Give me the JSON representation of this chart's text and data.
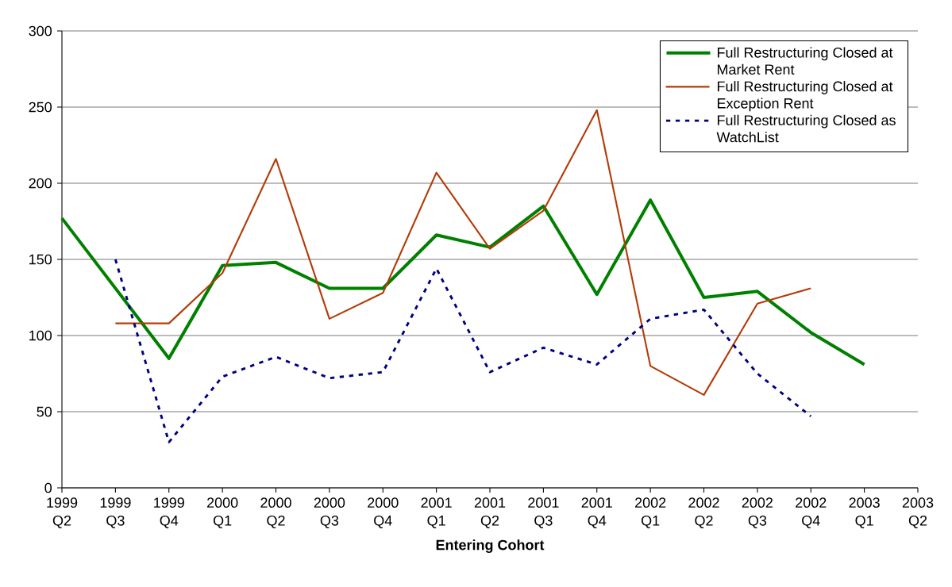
{
  "chart_data": {
    "type": "line",
    "xlabel": "Entering Cohort",
    "categories": [
      "1999 Q2",
      "1999 Q3",
      "1999 Q4",
      "2000 Q1",
      "2000 Q2",
      "2000 Q3",
      "2000 Q4",
      "2001 Q1",
      "2001 Q2",
      "2001 Q3",
      "2001 Q4",
      "2002 Q1",
      "2002 Q2",
      "2002 Q3",
      "2002 Q4",
      "2003 Q1",
      "2003 Q2"
    ],
    "series": [
      {
        "name": "Full Restructuring Closed at Market Rent",
        "color": "#008000",
        "line_style": "solid",
        "values": [
          177,
          131,
          85,
          146,
          148,
          131,
          131,
          166,
          158,
          185,
          127,
          189,
          125,
          129,
          102,
          81,
          null
        ]
      },
      {
        "name": "Full Restructuring Closed at Exception Rent",
        "color": "#b33c0a",
        "line_style": "solid",
        "values": [
          null,
          108,
          108,
          141,
          216,
          111,
          128,
          207,
          157,
          182,
          248,
          80,
          61,
          121,
          131,
          null,
          null
        ]
      },
      {
        "name": "Full Restructuring Closed as WatchList",
        "color": "#000080",
        "line_style": "dashed",
        "values": [
          null,
          150,
          30,
          73,
          86,
          72,
          76,
          144,
          76,
          92,
          81,
          111,
          117,
          75,
          47,
          null,
          null
        ]
      }
    ],
    "ylim": [
      0,
      300
    ],
    "yticks": [
      0,
      50,
      100,
      150,
      200,
      250,
      300
    ],
    "grid": "y",
    "legend": "top right"
  }
}
